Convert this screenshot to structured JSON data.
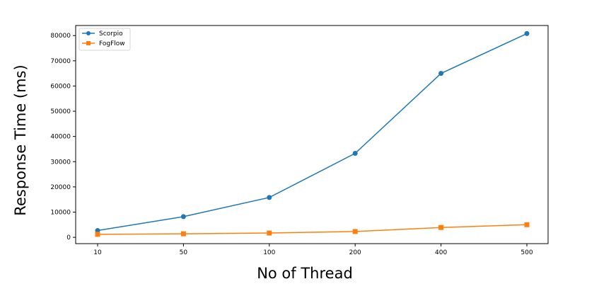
{
  "chart_data": {
    "type": "line",
    "title": "",
    "xlabel": "No of Thread",
    "ylabel": "Response Time (ms)",
    "categories": [
      "10",
      "50",
      "100",
      "200",
      "400",
      "500"
    ],
    "ylim": [
      -2500,
      84000
    ],
    "yticks": [
      0,
      10000,
      20000,
      30000,
      40000,
      50000,
      60000,
      70000,
      80000
    ],
    "ytick_labels": [
      "0",
      "10000",
      "20000",
      "30000",
      "40000",
      "50000",
      "60000",
      "70000",
      "80000"
    ],
    "grid": false,
    "legend_position": "top-left",
    "series": [
      {
        "name": "Scorpio",
        "marker": "circle",
        "color": "#1f77b4",
        "values": [
          2700,
          8200,
          15800,
          33300,
          65000,
          80800
        ]
      },
      {
        "name": "FogFlow",
        "marker": "square",
        "color": "#ff7f0e",
        "values": [
          1200,
          1400,
          1700,
          2300,
          3900,
          5000
        ]
      }
    ]
  }
}
